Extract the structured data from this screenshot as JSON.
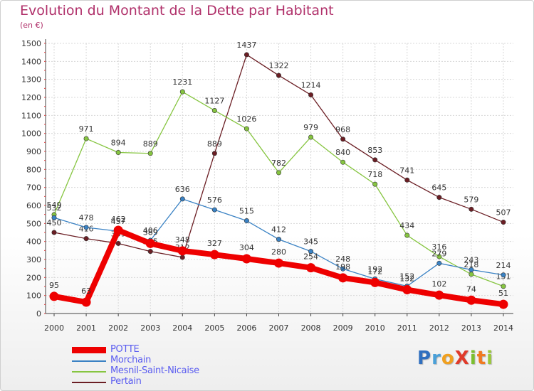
{
  "chart_data": {
    "type": "line",
    "title": "Evolution du Montant de la Dette par Habitant",
    "subtitle": "(en €)",
    "xlabel": "",
    "ylabel": "",
    "x": [
      "2000",
      "2001",
      "2002",
      "2003",
      "2004",
      "2005",
      "2006",
      "2007",
      "2008",
      "2009",
      "2010",
      "2011",
      "2012",
      "2013",
      "2014"
    ],
    "ylim": [
      0,
      1500
    ],
    "yticks": [
      0,
      100,
      200,
      300,
      400,
      500,
      600,
      700,
      800,
      900,
      1000,
      1100,
      1200,
      1300,
      1400,
      1500
    ],
    "grid": true,
    "legend_position": "bottom-left",
    "series": [
      {
        "name": "Pertain",
        "color": "#6b1e24",
        "values": [
          450,
          416,
          389,
          345,
          312,
          889,
          1437,
          1322,
          1214,
          968,
          853,
          741,
          645,
          579,
          507
        ]
      },
      {
        "name": "Mesnil-Saint-Nicaise",
        "color": "#86c540",
        "values": [
          549,
          971,
          894,
          889,
          1231,
          1127,
          1026,
          782,
          979,
          840,
          718,
          434,
          316,
          218,
          151
        ]
      },
      {
        "name": "Morchain",
        "color": "#3a82c4",
        "values": [
          532,
          478,
          457,
          406,
          636,
          576,
          515,
          412,
          345,
          248,
          192,
          152,
          279,
          243,
          214
        ]
      },
      {
        "name": "POTTE",
        "color": "#ee0000",
        "values": [
          95,
          63,
          462,
          389,
          348,
          327,
          304,
          280,
          254,
          198,
          172,
          132,
          102,
          74,
          51
        ]
      }
    ]
  },
  "legend": [
    {
      "label": "POTTE",
      "color": "#ee0000"
    },
    {
      "label": "Morchain",
      "color": "#3a82c4"
    },
    {
      "label": "Mesnil-Saint-Nicaise",
      "color": "#86c540"
    },
    {
      "label": "Pertain",
      "color": "#6b1e24"
    }
  ],
  "logo": {
    "text": "ProXiti"
  }
}
